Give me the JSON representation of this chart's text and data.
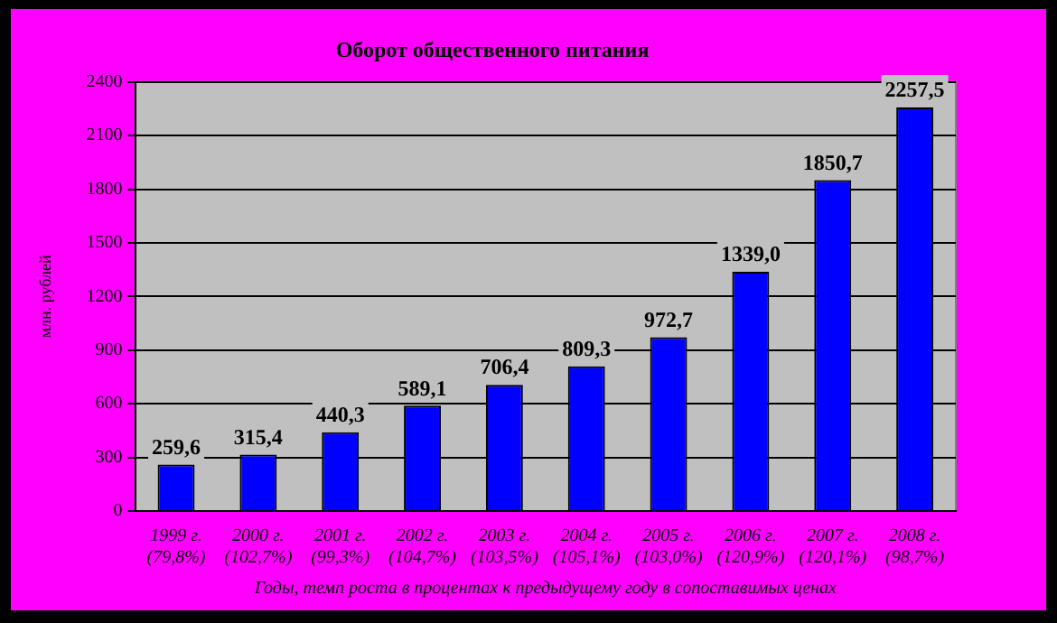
{
  "chart_data": {
    "type": "bar",
    "title": "Оборот общественного питания",
    "ylabel": "млн. рублей",
    "xlabel": "Годы, темп роста в процентах к предыдущему году в сопоставимых ценах",
    "categories": [
      "1999 г.\n(79,8%)",
      "2000 г.\n(102,7%)",
      "2001 г.\n(99,3%)",
      "2002 г.\n(104,7%)",
      "2003 г.\n(103,5%)",
      "2004 г.\n(105,1%)",
      "2005 г.\n(103,0%)",
      "2006 г.\n(120,9%)",
      "2007 г.\n(120,1%)",
      "2008 г.\n(98,7%)"
    ],
    "values": [
      259.6,
      315.4,
      440.3,
      589.1,
      706.4,
      809.3,
      972.7,
      1339.0,
      1850.7,
      2257.5
    ],
    "value_labels": [
      "259,6",
      "315,4",
      "440,3",
      "589,1",
      "706,4",
      "809,3",
      "972,7",
      "1339,0",
      "1850,7",
      "2257,5"
    ],
    "color": "#0000ff",
    "ylim": [
      0,
      2400
    ],
    "yticks": [
      0,
      300,
      600,
      900,
      1200,
      1500,
      1800,
      2100,
      2400
    ],
    "grid": "y",
    "legend": false
  }
}
